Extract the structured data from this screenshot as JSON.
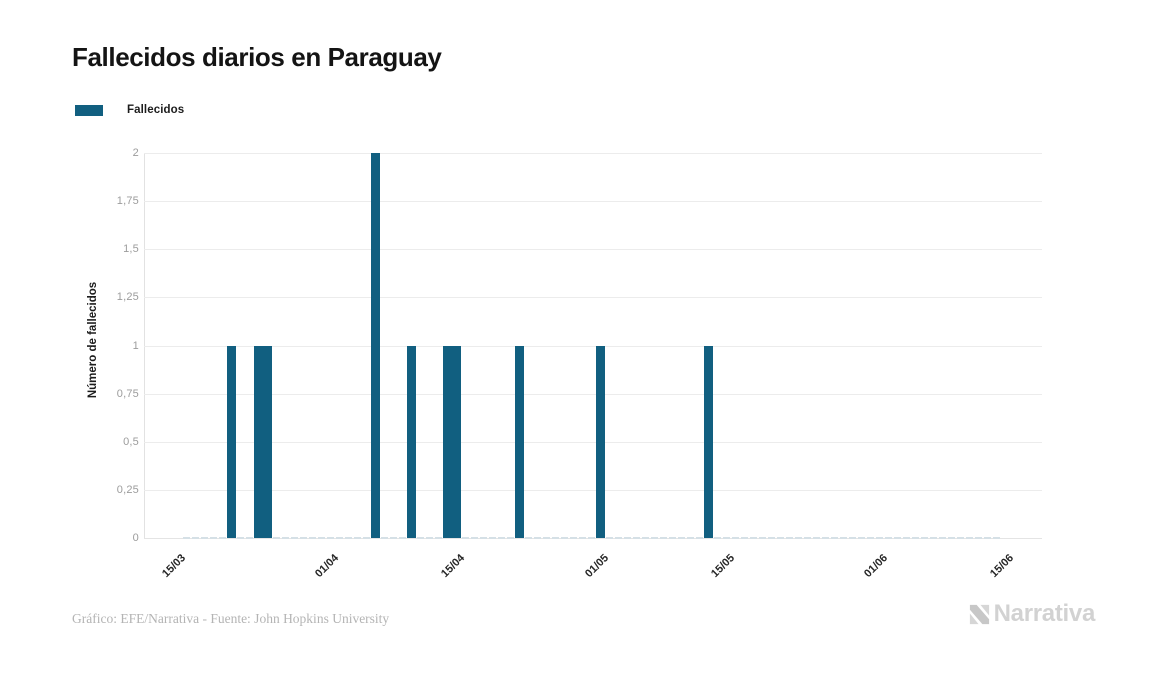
{
  "header": {
    "title": "Fallecidos diarios en Paraguay"
  },
  "legend": {
    "label": "Fallecidos",
    "swatch_color": "#115f80"
  },
  "chart_data": {
    "type": "bar",
    "title": "Fallecidos diarios en Paraguay",
    "xlabel": "",
    "ylabel": "Número de fallecidos",
    "ylim": [
      0,
      2
    ],
    "grid": "horizontal",
    "legend_position": "top-left",
    "bar_color": "#115f80",
    "zero_bar_color": "#d5e0e6",
    "x_ticks": [
      "15/03",
      "01/04",
      "15/04",
      "01/05",
      "15/05",
      "01/06",
      "15/06"
    ],
    "y_ticks": [
      "0",
      "0,25",
      "0,5",
      "0,75",
      "1",
      "1,25",
      "1,5",
      "1,75",
      "2"
    ],
    "y_tick_step": 0.25,
    "series": [
      {
        "name": "Fallecidos",
        "points": [
          {
            "date": "22/03",
            "value": 1
          },
          {
            "date": "25/03",
            "value": 1
          },
          {
            "date": "26/03",
            "value": 1
          },
          {
            "date": "07/04",
            "value": 2
          },
          {
            "date": "11/04",
            "value": 1
          },
          {
            "date": "15/04",
            "value": 1
          },
          {
            "date": "16/04",
            "value": 1
          },
          {
            "date": "23/04",
            "value": 1
          },
          {
            "date": "02/05",
            "value": 1
          },
          {
            "date": "14/05",
            "value": 1
          }
        ]
      }
    ],
    "zero_value_days": {
      "from": "17/03",
      "to": "15/06",
      "value": 0
    }
  },
  "footer": {
    "credit": "Gráfico: EFE/Narrativa - Fuente: John Hopkins University",
    "brand": "Narrativa"
  }
}
